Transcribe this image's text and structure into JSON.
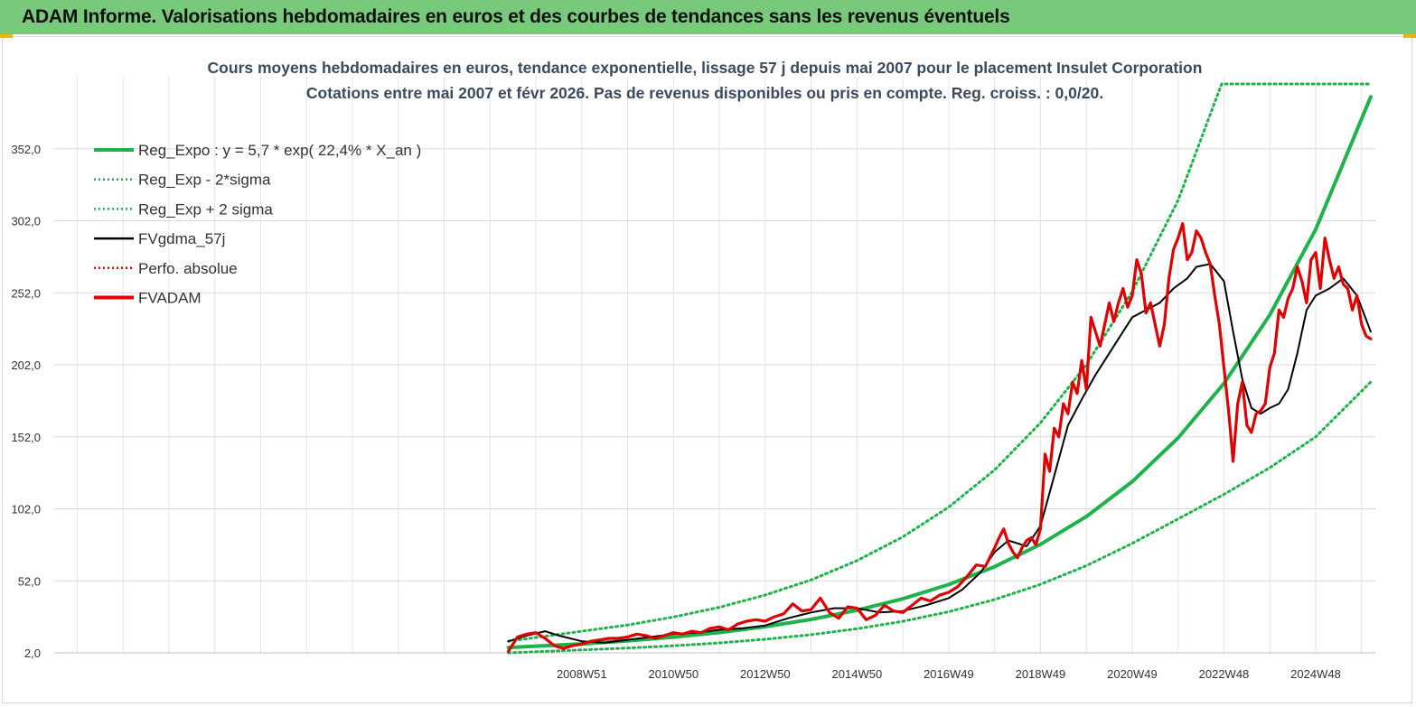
{
  "header": {
    "title": "ADAM Informe. Valorisations hebdomadaires en euros et des courbes de tendances sans les revenus éventuels"
  },
  "chart_data": {
    "type": "line",
    "title": "Cours moyens hebdomadaires en euros, tendance exponentielle, lissage 57 j depuis mai 2007 pour le placement Insulet Corporation",
    "subtitle": "Cotations entre mai 2007 et févr 2026. Pas de revenus disponibles ou pris en compte. Reg. croiss. : 0,0/20.",
    "ylim": [
      2,
      402
    ],
    "xlim": [
      1997.5,
      2026.3
    ],
    "y_ticks": [
      "2,0",
      "52,0",
      "102,0",
      "152,0",
      "202,0",
      "252,0",
      "302,0",
      "352,0"
    ],
    "y_tick_values": [
      2,
      52,
      102,
      152,
      202,
      252,
      302,
      352
    ],
    "x_ticks": [
      "2008W51",
      "2010W50",
      "2012W50",
      "2014W50",
      "2016W49",
      "2018W49",
      "2020W49",
      "2022W48",
      "2024W48"
    ],
    "x_tick_values": [
      2009.0,
      2011.0,
      2013.0,
      2015.0,
      2017.0,
      2019.0,
      2021.0,
      2023.0,
      2025.0
    ],
    "legend": [
      {
        "label": "Reg_Expo : y = 5,7 * exp( 22,4% *  X_an )",
        "color": "#1fb24a",
        "style": "solid-thick"
      },
      {
        "label": "Reg_Exp - 2*sigma",
        "color": "#1fb24a",
        "style": "dotted"
      },
      {
        "label": "Reg_Exp + 2 sigma",
        "color": "#1fb24a",
        "style": "dotted"
      },
      {
        "label": "FVgdma_57j",
        "color": "#000000",
        "style": "solid"
      },
      {
        "label": "Perfo. absolue",
        "color": "#e00000",
        "style": "dotted"
      },
      {
        "label": "FVADAM",
        "color": "#e00000",
        "style": "solid-thick"
      }
    ],
    "series": [
      {
        "name": "Reg_Expo",
        "color": "#1fb24a",
        "x": [
          2007.4,
          2009.0,
          2010.0,
          2011.0,
          2012.0,
          2013.0,
          2014.0,
          2015.0,
          2016.0,
          2017.0,
          2018.0,
          2019.0,
          2020.0,
          2021.0,
          2022.0,
          2023.0,
          2024.0,
          2025.0,
          2026.2
        ],
        "y": [
          5.7,
          8.2,
          10.3,
          12.9,
          16.1,
          20.2,
          25.2,
          31.6,
          39.5,
          49.4,
          61.8,
          77.3,
          96.6,
          120.9,
          151.2,
          189.1,
          236.6,
          296.0,
          388
        ]
      },
      {
        "name": "Reg_Exp - 2*sigma",
        "color": "#1fb24a",
        "x": [
          2007.4,
          2009.0,
          2010.0,
          2011.0,
          2012.0,
          2013.0,
          2014.0,
          2015.0,
          2016.0,
          2017.0,
          2018.0,
          2019.0,
          2020.0,
          2021.0,
          2022.0,
          2023.0,
          2024.0,
          2025.0,
          2026.2
        ],
        "y": [
          2.0,
          4.0,
          5.3,
          6.9,
          8.9,
          11.4,
          14.6,
          18.7,
          23.9,
          30.5,
          39.0,
          49.5,
          62.5,
          78.0,
          95.0,
          112.0,
          130.5,
          152.0,
          190
        ]
      },
      {
        "name": "Reg_Exp + 2 sigma",
        "color": "#1fb24a",
        "x": [
          2007.4,
          2009.0,
          2010.0,
          2011.0,
          2012.0,
          2013.0,
          2014.0,
          2015.0,
          2016.0,
          2017.0,
          2018.0,
          2019.0,
          2020.0,
          2021.0,
          2022.0,
          2022.95,
          2026.2
        ],
        "y": [
          10.0,
          17.0,
          21.3,
          26.9,
          33.6,
          42.1,
          52.6,
          66.0,
          82.5,
          103.2,
          129.0,
          161.6,
          202.0,
          252.8,
          316.2,
          397,
          397
        ]
      },
      {
        "name": "FVgdma_57j",
        "color": "#000000",
        "x": [
          2007.4,
          2007.8,
          2008.2,
          2008.5,
          2009.0,
          2009.5,
          2010.0,
          2010.5,
          2011.0,
          2011.5,
          2012.0,
          2012.5,
          2013.0,
          2013.5,
          2014.0,
          2014.5,
          2015.0,
          2015.5,
          2016.0,
          2016.5,
          2017.0,
          2017.3,
          2017.7,
          2018.0,
          2018.3,
          2018.7,
          2019.0,
          2019.3,
          2019.6,
          2019.9,
          2020.2,
          2020.5,
          2020.8,
          2021.0,
          2021.3,
          2021.6,
          2021.9,
          2022.2,
          2022.4,
          2022.7,
          2023.0,
          2023.2,
          2023.4,
          2023.6,
          2023.8,
          2024.0,
          2024.2,
          2024.4,
          2024.6,
          2024.8,
          2025.0,
          2025.3,
          2025.6,
          2025.9,
          2026.2
        ],
        "y": [
          10,
          14,
          17,
          14,
          10,
          9,
          11,
          13,
          15,
          16,
          18,
          19,
          21,
          26,
          30,
          33,
          33,
          30,
          31,
          35,
          40,
          46,
          58,
          72,
          80,
          76,
          90,
          125,
          160,
          178,
          195,
          210,
          225,
          235,
          240,
          245,
          255,
          262,
          270,
          272,
          260,
          225,
          192,
          172,
          168,
          172,
          175,
          185,
          210,
          240,
          250,
          255,
          262,
          250,
          225
        ]
      },
      {
        "name": "Perfo. absolue",
        "color": "#e00000",
        "x": [],
        "y": []
      },
      {
        "name": "FVADAM",
        "color": "#e00000",
        "x": [
          2007.4,
          2007.6,
          2007.8,
          2008.0,
          2008.2,
          2008.4,
          2008.6,
          2008.8,
          2009.0,
          2009.2,
          2009.4,
          2009.6,
          2009.8,
          2010.0,
          2010.2,
          2010.4,
          2010.6,
          2010.8,
          2011.0,
          2011.2,
          2011.4,
          2011.6,
          2011.8,
          2012.0,
          2012.2,
          2012.4,
          2012.6,
          2012.8,
          2013.0,
          2013.2,
          2013.4,
          2013.6,
          2013.8,
          2014.0,
          2014.2,
          2014.4,
          2014.6,
          2014.8,
          2015.0,
          2015.2,
          2015.4,
          2015.6,
          2015.8,
          2016.0,
          2016.2,
          2016.4,
          2016.6,
          2016.8,
          2017.0,
          2017.2,
          2017.4,
          2017.6,
          2017.8,
          2018.0,
          2018.1,
          2018.2,
          2018.3,
          2018.4,
          2018.5,
          2018.6,
          2018.7,
          2018.8,
          2018.9,
          2019.0,
          2019.1,
          2019.2,
          2019.3,
          2019.4,
          2019.5,
          2019.6,
          2019.7,
          2019.8,
          2019.9,
          2020.0,
          2020.1,
          2020.2,
          2020.3,
          2020.4,
          2020.5,
          2020.6,
          2020.7,
          2020.8,
          2020.9,
          2021.0,
          2021.1,
          2021.2,
          2021.3,
          2021.4,
          2021.5,
          2021.6,
          2021.7,
          2021.8,
          2021.9,
          2022.0,
          2022.1,
          2022.2,
          2022.3,
          2022.4,
          2022.5,
          2022.6,
          2022.7,
          2022.8,
          2022.9,
          2023.0,
          2023.1,
          2023.2,
          2023.3,
          2023.4,
          2023.5,
          2023.6,
          2023.7,
          2023.8,
          2023.9,
          2024.0,
          2024.1,
          2024.2,
          2024.3,
          2024.4,
          2024.5,
          2024.6,
          2024.7,
          2024.8,
          2024.9,
          2025.0,
          2025.1,
          2025.2,
          2025.3,
          2025.4,
          2025.5,
          2025.6,
          2025.7,
          2025.8,
          2025.9,
          2026.0,
          2026.1,
          2026.2
        ],
        "y": [
          3,
          13,
          15,
          16,
          12,
          7,
          5,
          7,
          8,
          10,
          11,
          12,
          12,
          13,
          15,
          14,
          12,
          14,
          16,
          15,
          17,
          16,
          19,
          20,
          18,
          22,
          24,
          25,
          24,
          27,
          29,
          36,
          31,
          32,
          40,
          30,
          26,
          34,
          33,
          25,
          28,
          35,
          31,
          30,
          35,
          40,
          38,
          42,
          44,
          48,
          55,
          63,
          62,
          75,
          82,
          88,
          78,
          72,
          68,
          75,
          80,
          82,
          77,
          88,
          140,
          128,
          158,
          152,
          175,
          168,
          190,
          182,
          205,
          185,
          235,
          225,
          215,
          230,
          245,
          232,
          245,
          255,
          242,
          250,
          275,
          265,
          238,
          245,
          230,
          215,
          230,
          262,
          282,
          290,
          300,
          275,
          280,
          295,
          290,
          280,
          272,
          250,
          230,
          200,
          170,
          135,
          175,
          190,
          160,
          155,
          168,
          170,
          175,
          200,
          210,
          240,
          235,
          248,
          255,
          270,
          260,
          245,
          275,
          280,
          255,
          290,
          275,
          262,
          270,
          258,
          255,
          240,
          250,
          230,
          222,
          220
        ]
      }
    ]
  }
}
